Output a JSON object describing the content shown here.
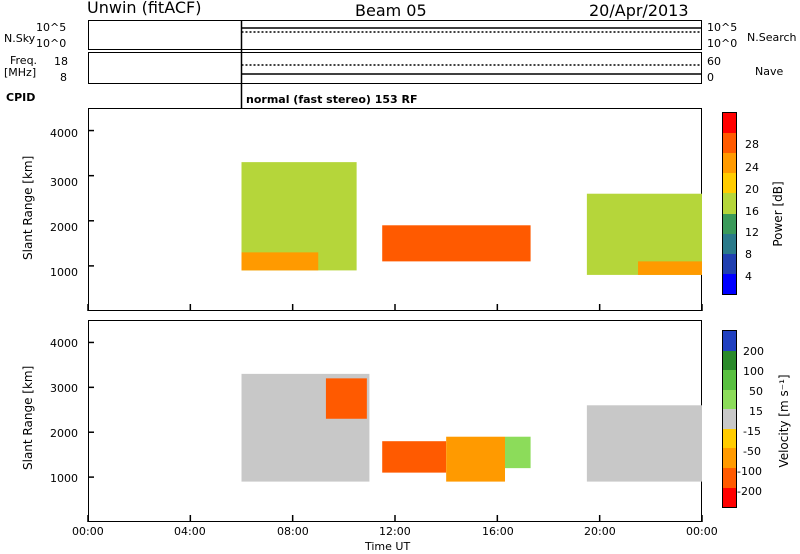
{
  "header": {
    "station": "Unwin (fitACF)",
    "beam": "Beam 05",
    "date": "20/Apr/2013"
  },
  "strip_labels": {
    "nsky": "N.Sky",
    "nsearch": "N.Search",
    "freq": "Freq.",
    "mhz": "[MHz]",
    "nave": "Nave",
    "cpid": "CPID",
    "sky_ticks": [
      "10^5",
      "10^0"
    ],
    "freq_ticks": [
      "18",
      "8"
    ],
    "nave_ticks": [
      "60",
      "0"
    ],
    "cpid_text": "normal (fast stereo) 153 RF"
  },
  "axes": {
    "ylabel": "Slant Range [km]",
    "xlabel": "Time UT",
    "y_ticks": [
      "4000",
      "3000",
      "2000",
      "1000"
    ],
    "x_ticks": [
      "00:00",
      "04:00",
      "08:00",
      "12:00",
      "16:00",
      "20:00",
      "00:00"
    ]
  },
  "colorbars": {
    "power": {
      "label": "Power [dB]",
      "ticks": [
        "28",
        "24",
        "20",
        "16",
        "12",
        "8",
        "4"
      ],
      "colors": [
        "#ff0000",
        "#ff5a00",
        "#ff9a00",
        "#ffcc00",
        "#b5d63a",
        "#3a9a5a",
        "#2a7a8a",
        "#2040b0",
        "#0000ff"
      ]
    },
    "velocity": {
      "label": "Velocity [m s⁻¹]",
      "ticks": [
        "200",
        "100",
        "50",
        "15",
        "-15",
        "-50",
        "-100",
        "-200"
      ],
      "colors": [
        "#2040c0",
        "#2a8a2a",
        "#58c040",
        "#8cdc5a",
        "#c8c8c8",
        "#ffcc00",
        "#ff9a00",
        "#ff5a00",
        "#ff0000"
      ]
    }
  },
  "chart_data": [
    {
      "type": "heatmap",
      "title": "Power",
      "xlabel": "Time UT",
      "ylabel": "Slant Range [km]",
      "xlim": [
        "00:00",
        "24:00"
      ],
      "ylim": [
        0,
        4500
      ],
      "colorbar_label": "Power [dB]",
      "colorbar_ticks": [
        28,
        24,
        20,
        16,
        12,
        8,
        4
      ],
      "regions": [
        {
          "t_start": 6.0,
          "t_end": 10.5,
          "range_min": 900,
          "range_max": 3300,
          "power_db": 16
        },
        {
          "t_start": 6.0,
          "t_end": 9.0,
          "range_min": 900,
          "range_max": 1300,
          "power_db": 22
        },
        {
          "t_start": 11.5,
          "t_end": 17.3,
          "range_min": 1100,
          "range_max": 1900,
          "power_db": 26
        },
        {
          "t_start": 19.5,
          "t_end": 24.0,
          "range_min": 800,
          "range_max": 2600,
          "power_db": 14
        },
        {
          "t_start": 21.5,
          "t_end": 24.0,
          "range_min": 800,
          "range_max": 1100,
          "power_db": 22
        }
      ]
    },
    {
      "type": "heatmap",
      "title": "Velocity",
      "xlabel": "Time UT",
      "ylabel": "Slant Range [km]",
      "xlim": [
        "00:00",
        "24:00"
      ],
      "ylim": [
        0,
        4500
      ],
      "colorbar_label": "Velocity [m s⁻¹]",
      "colorbar_ticks": [
        200,
        100,
        50,
        15,
        -15,
        -50,
        -100,
        -200
      ],
      "regions": [
        {
          "t_start": 6.0,
          "t_end": 11.0,
          "range_min": 900,
          "range_max": 3300,
          "velocity": 0
        },
        {
          "t_start": 9.3,
          "t_end": 10.9,
          "range_min": 2300,
          "range_max": 3200,
          "velocity": -200
        },
        {
          "t_start": 11.5,
          "t_end": 14.0,
          "range_min": 1100,
          "range_max": 1800,
          "velocity": -200
        },
        {
          "t_start": 14.0,
          "t_end": 16.3,
          "range_min": 900,
          "range_max": 1900,
          "velocity": -75
        },
        {
          "t_start": 16.3,
          "t_end": 17.3,
          "range_min": 1200,
          "range_max": 1900,
          "velocity": 30
        },
        {
          "t_start": 19.5,
          "t_end": 24.0,
          "range_min": 900,
          "range_max": 2600,
          "velocity": 0
        }
      ]
    }
  ]
}
